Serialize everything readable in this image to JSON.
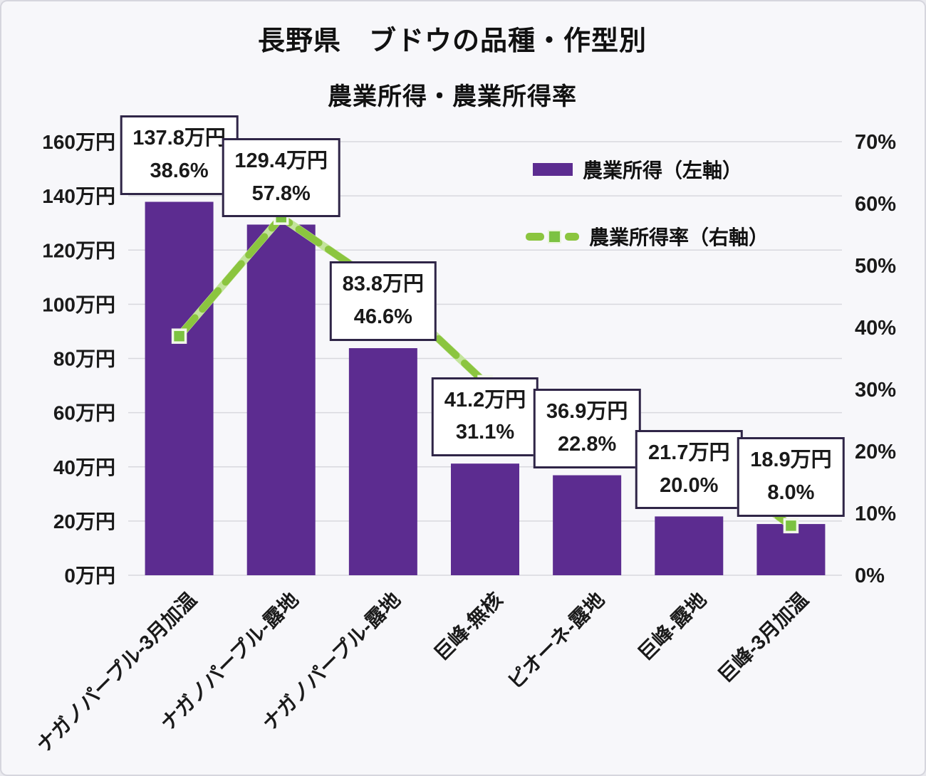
{
  "title": "長野県　ブドウの品種・作型別",
  "subtitle": "農業所得・農業所得率",
  "legend": {
    "bar_label": "農業所得（左軸）",
    "line_label": "農業所得率（右軸）"
  },
  "colors": {
    "bar": "#5c2c90",
    "line": "#8bc53f",
    "line_glow": "#c3e49b",
    "marker": "#7cc242",
    "marker_stroke": "#f2f7ea",
    "box_border": "#2f2547",
    "grid": "#d8d8de",
    "text": "#1a1a1a"
  },
  "chart_data": {
    "type": "combo: bar + line",
    "title": "長野県　ブドウの品種・作型別",
    "subtitle": "農業所得・農業所得率",
    "categories": [
      "ナガノパープル-3月加温",
      "ナガノパープル-露地",
      "ナガノパープル-露地",
      "巨峰-無核",
      "ピオーネ-露地",
      "巨峰-露地",
      "巨峰-3月加温"
    ],
    "series": [
      {
        "name": "農業所得（左軸）",
        "type": "bar",
        "axis": "left",
        "unit": "万円",
        "values": [
          137.8,
          129.4,
          83.8,
          41.2,
          36.9,
          21.7,
          18.9
        ]
      },
      {
        "name": "農業所得率（右軸）",
        "type": "line",
        "axis": "right",
        "unit": "%",
        "values": [
          38.6,
          57.8,
          46.6,
          31.1,
          22.8,
          20.0,
          8.0
        ]
      }
    ],
    "data_labels": [
      [
        "137.8万円",
        "38.6%"
      ],
      [
        "129.4万円",
        "57.8%"
      ],
      [
        "83.8万円",
        "46.6%"
      ],
      [
        "41.2万円",
        "31.1%"
      ],
      [
        "36.9万円",
        "22.8%"
      ],
      [
        "21.7万円",
        "20.0%"
      ],
      [
        "18.9万円",
        "8.0%"
      ]
    ],
    "left_axis": {
      "min": 0,
      "max": 160,
      "step": 20,
      "suffix": "万円",
      "ticks": [
        "0万円",
        "20万円",
        "40万円",
        "60万円",
        "80万円",
        "100万円",
        "120万円",
        "140万円",
        "160万円"
      ]
    },
    "right_axis": {
      "min": 0,
      "max": 70,
      "step": 10,
      "suffix": "%",
      "ticks": [
        "0%",
        "10%",
        "20%",
        "30%",
        "40%",
        "50%",
        "60%",
        "70%"
      ]
    },
    "grid": true,
    "legend_position": "inside-top-right"
  }
}
